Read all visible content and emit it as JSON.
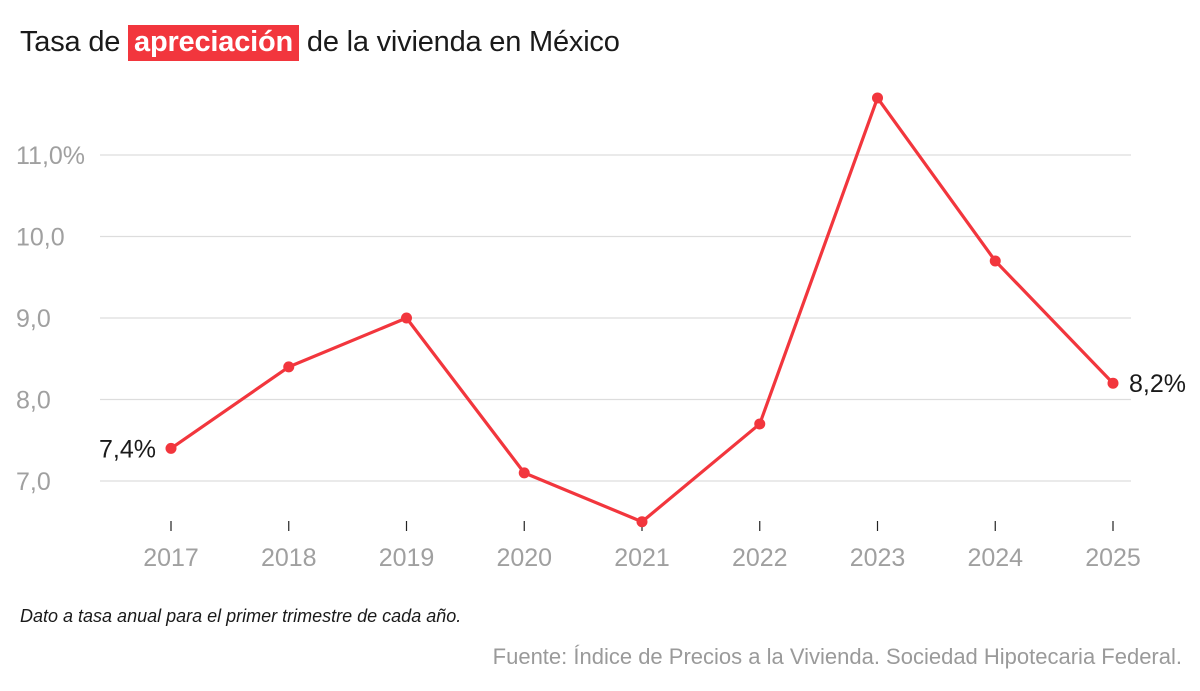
{
  "title": {
    "prefix": "Tasa de",
    "highlight": "apreciación",
    "suffix": "de la vivienda en México"
  },
  "note": "Dato a tasa anual para el primer trimestre de cada año.",
  "source": "Fuente: Índice de Precios a la Vivienda. Sociedad Hipotecaria Federal.",
  "colors": {
    "accent": "#f2363d",
    "axis_text": "#a0a0a0",
    "grid": "#dddddd",
    "text": "#1a1a1a"
  },
  "chart_data": {
    "type": "line",
    "title": "Tasa de apreciación de la vivienda en México",
    "categories": [
      "2017",
      "2018",
      "2019",
      "2020",
      "2021",
      "2022",
      "2023",
      "2024",
      "2025"
    ],
    "values": [
      7.4,
      8.4,
      9.0,
      7.1,
      6.5,
      7.7,
      11.7,
      9.7,
      8.2
    ],
    "yticks": [
      7.0,
      8.0,
      9.0,
      10.0,
      11.0
    ],
    "ytick_labels": [
      "7,0",
      "8,0",
      "9,0",
      "10,0",
      "11,0%"
    ],
    "ylim": [
      6.5,
      11.7
    ],
    "annotations": [
      {
        "index": 0,
        "label": "7,4%",
        "side": "left"
      },
      {
        "index": 8,
        "label": "8,2%",
        "side": "right"
      }
    ],
    "xlabel": "",
    "ylabel": "",
    "grid": true
  }
}
